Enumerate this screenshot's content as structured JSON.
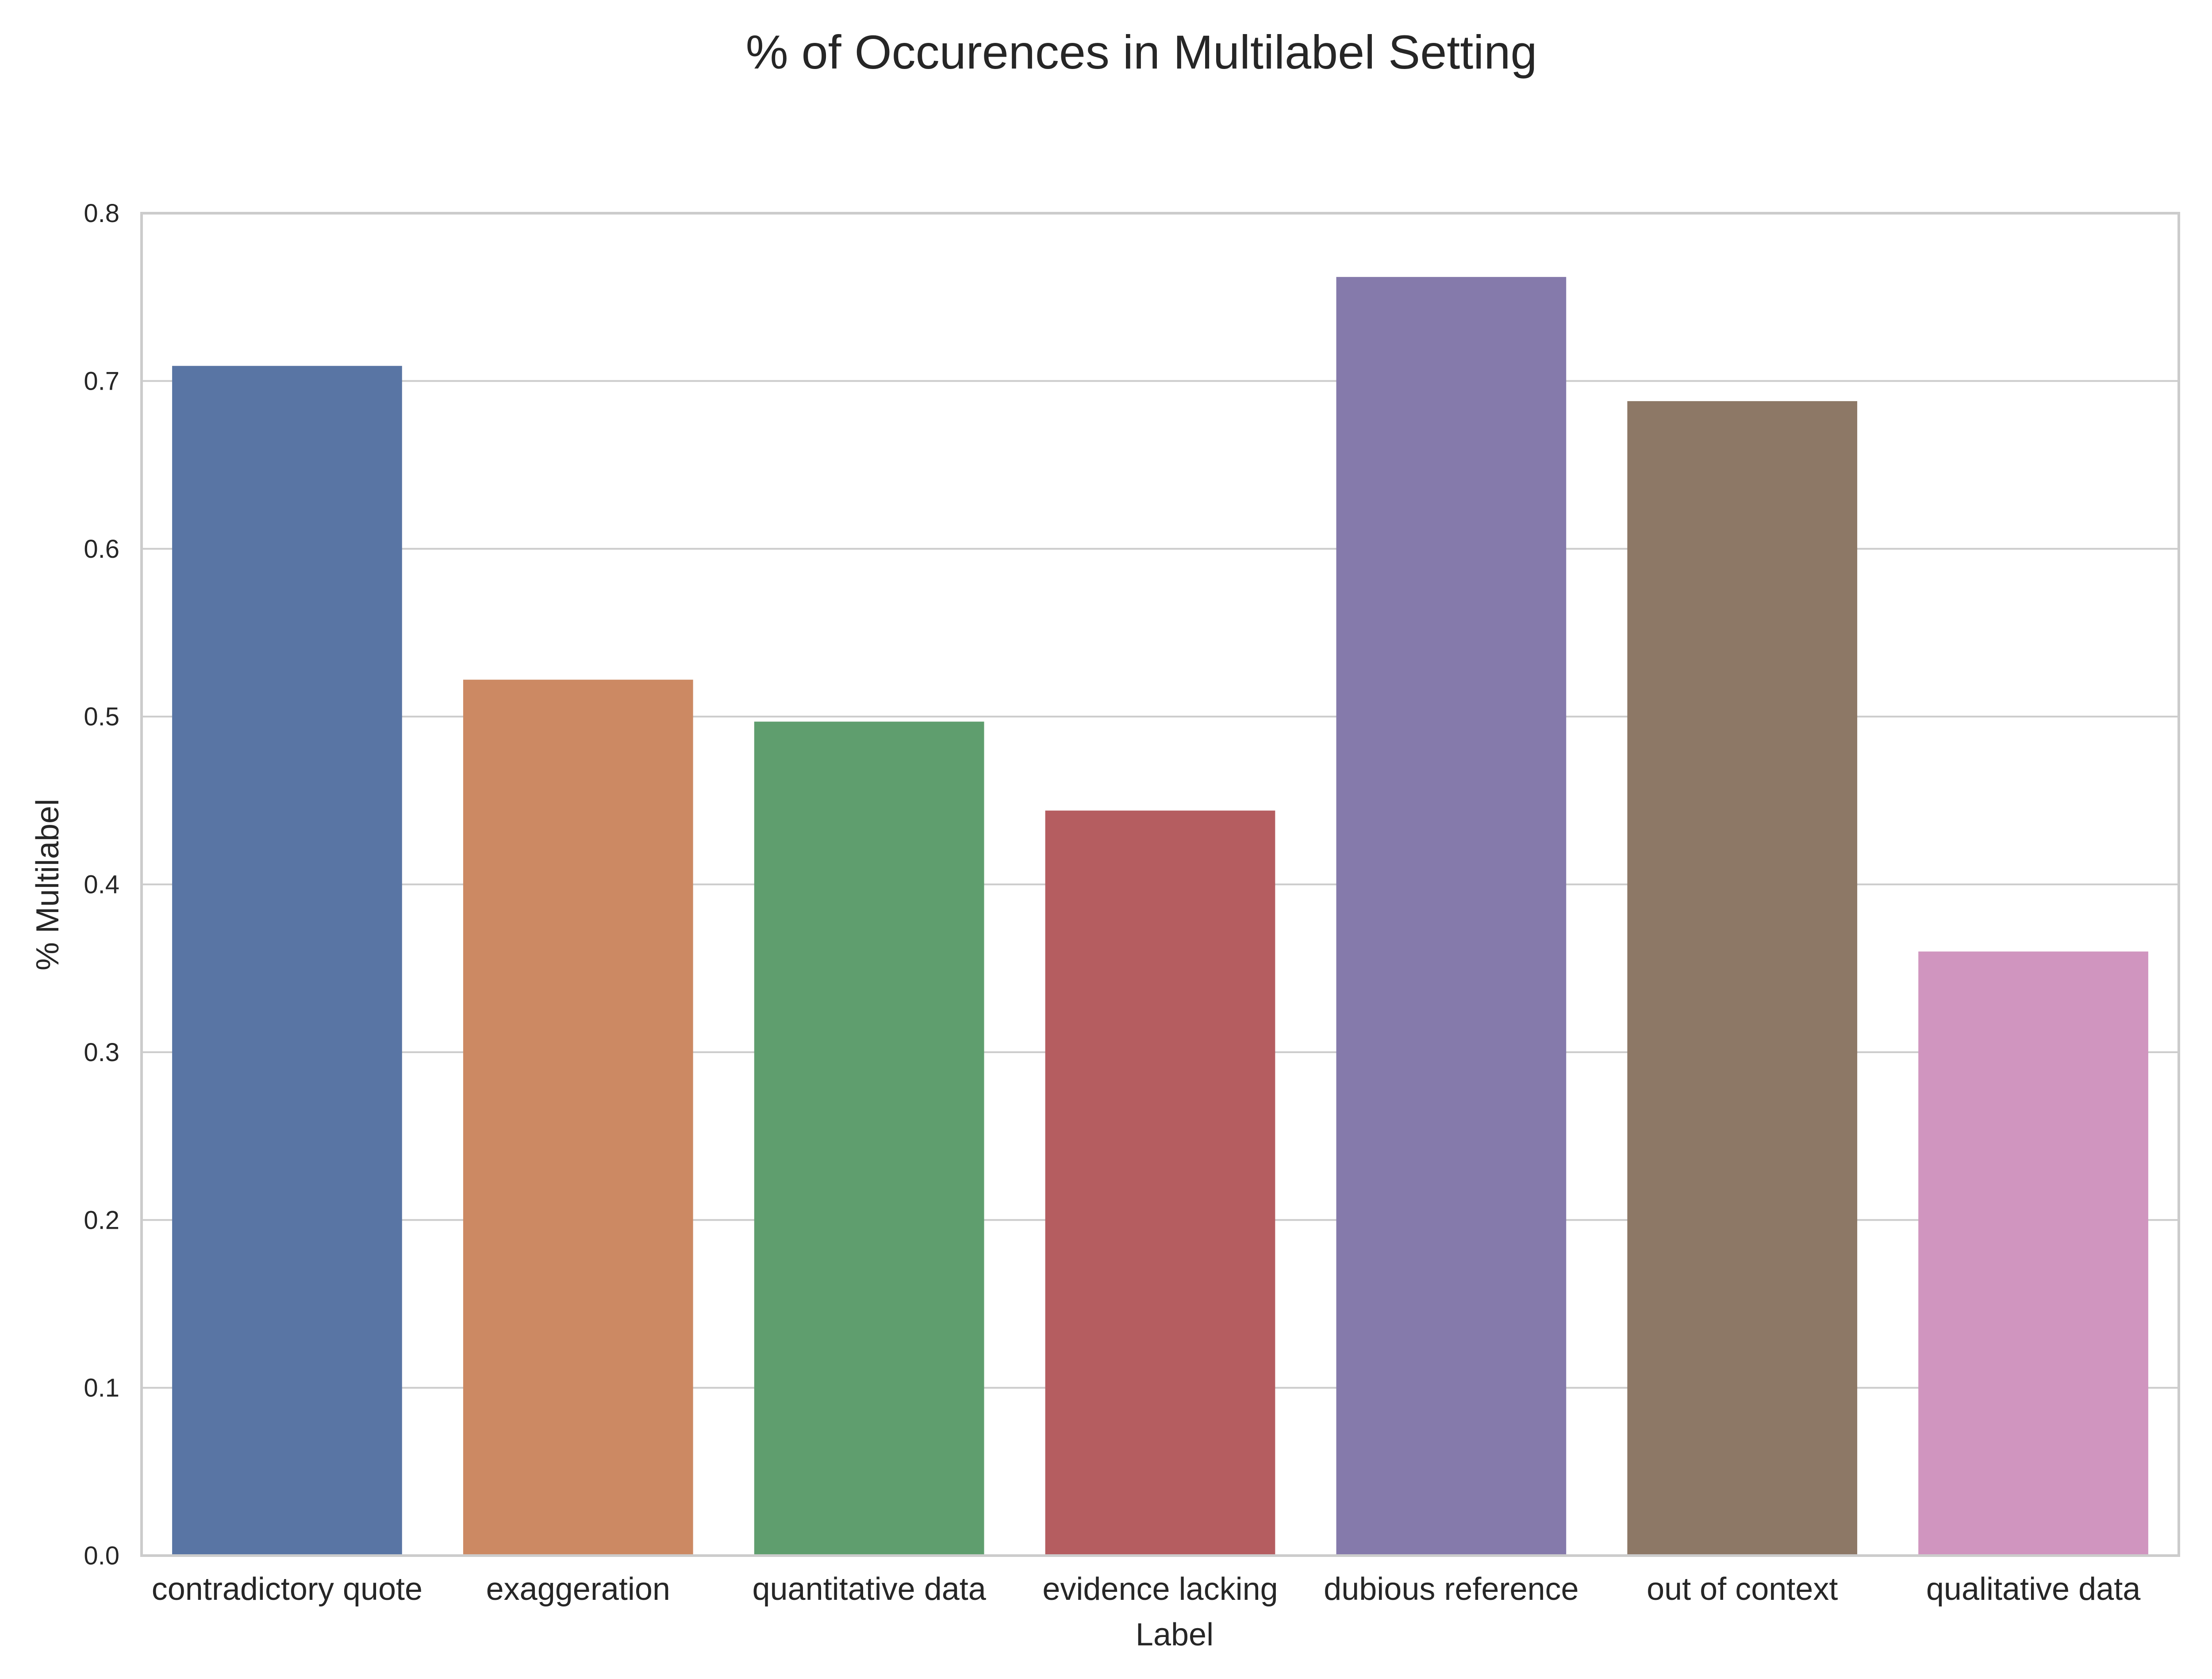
{
  "chart_data": {
    "type": "bar",
    "title": "% of Occurences in Multilabel Setting",
    "xlabel": "Label",
    "ylabel": "% Multilabel",
    "categories": [
      "contradictory quote",
      "exaggeration",
      "quantitative data",
      "evidence lacking",
      "dubious reference",
      "out of context",
      "qualitative data"
    ],
    "values": [
      0.709,
      0.522,
      0.497,
      0.444,
      0.762,
      0.688,
      0.36
    ],
    "colors": [
      "#5975a4",
      "#cc8963",
      "#5f9e6e",
      "#b55d60",
      "#857aab",
      "#8d7866",
      "#d095bf"
    ],
    "ylim": [
      0,
      0.8
    ],
    "yticks": [
      "0.0",
      "0.1",
      "0.2",
      "0.3",
      "0.4",
      "0.5",
      "0.6",
      "0.7",
      "0.8"
    ],
    "grid": true,
    "grid_axis": "y",
    "style": {
      "grid_color": "#cccccc",
      "frame_color": "#cccccc",
      "text_color": "#262626"
    }
  }
}
